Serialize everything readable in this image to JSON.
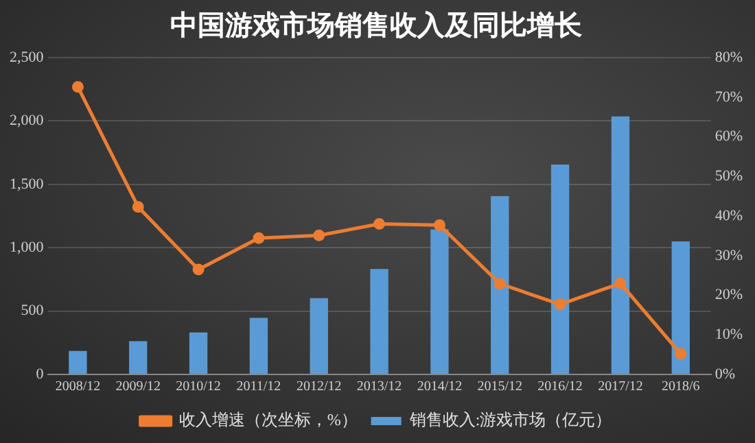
{
  "chart_data": {
    "type": "bar",
    "title": "中国游戏市场销售收入及同比增长",
    "categories": [
      "2008/12",
      "2009/12",
      "2010/12",
      "2011/12",
      "2012/12",
      "2013/12",
      "2014/12",
      "2015/12",
      "2016/12",
      "2017/12",
      "2018/6"
    ],
    "series": [
      {
        "name": "销售收入:游戏市场（亿元）",
        "color": "#5b9bd5",
        "values": [
          186,
          262,
          331,
          446,
          602,
          832,
          1145,
          1407,
          1656,
          2036,
          1050
        ]
      },
      {
        "name": "收入增速（次坐标，%）",
        "type": "line",
        "axis": "y2",
        "color": "#ed7d31",
        "values": [
          72.6,
          42.3,
          26.5,
          34.4,
          35.1,
          38.0,
          37.7,
          22.9,
          17.7,
          23.0,
          5.2
        ]
      }
    ],
    "ylim": [
      0,
      2500
    ],
    "yticks": [
      0,
      {
        "value": 500,
        "label": "500"
      },
      {
        "value": 1000,
        "label": "1,000"
      },
      {
        "value": 1500,
        "label": "1,500"
      },
      {
        "value": 2000,
        "label": "2,000"
      },
      {
        "value": 2500,
        "label": "2,500"
      }
    ],
    "y2lim": [
      0,
      80
    ],
    "y2ticks": [
      {
        "value": 0,
        "label": "0%"
      },
      {
        "value": 10,
        "label": "10%"
      },
      {
        "value": 20,
        "label": "20%"
      },
      {
        "value": 30,
        "label": "30%"
      },
      {
        "value": 40,
        "label": "40%"
      },
      {
        "value": 50,
        "label": "50%"
      },
      {
        "value": 60,
        "label": "60%"
      },
      {
        "value": 70,
        "label": "70%"
      },
      {
        "value": 80,
        "label": "80%"
      }
    ],
    "grid": "y",
    "legend": "bottom",
    "marker": "circle"
  }
}
